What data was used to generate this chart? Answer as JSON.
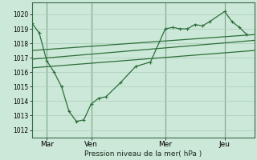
{
  "xlabel": "Pression niveau de la mer( hPa )",
  "background_color": "#cce8d8",
  "grid_color": "#aaccb8",
  "line_color": "#2d6e3a",
  "ylim": [
    1011.5,
    1020.8
  ],
  "yticks": [
    1012,
    1013,
    1014,
    1015,
    1016,
    1017,
    1018,
    1019,
    1020
  ],
  "xtick_labels": [
    "Mar",
    "Ven",
    "Mer",
    "Jeu"
  ],
  "xtick_positions": [
    2,
    8,
    18,
    26
  ],
  "xlim": [
    0,
    30
  ],
  "series1": {
    "x": [
      0,
      1,
      2,
      3,
      4,
      5,
      6,
      7,
      8,
      9,
      10,
      12,
      14,
      16,
      18,
      19,
      20,
      21,
      22,
      23,
      24,
      26,
      27,
      28,
      29
    ],
    "y": [
      1019.4,
      1018.7,
      1016.8,
      1016.0,
      1015.0,
      1013.3,
      1012.6,
      1012.7,
      1013.8,
      1014.2,
      1014.3,
      1015.3,
      1016.4,
      1016.7,
      1019.0,
      1019.1,
      1019.0,
      1019.0,
      1019.3,
      1019.2,
      1019.5,
      1020.2,
      1019.5,
      1019.1,
      1018.6
    ]
  },
  "series2": {
    "x": [
      0,
      30
    ],
    "y": [
      1017.5,
      1018.6
    ]
  },
  "series3": {
    "x": [
      0,
      30
    ],
    "y": [
      1016.9,
      1018.2
    ]
  },
  "series4": {
    "x": [
      0,
      30
    ],
    "y": [
      1016.3,
      1017.5
    ]
  }
}
